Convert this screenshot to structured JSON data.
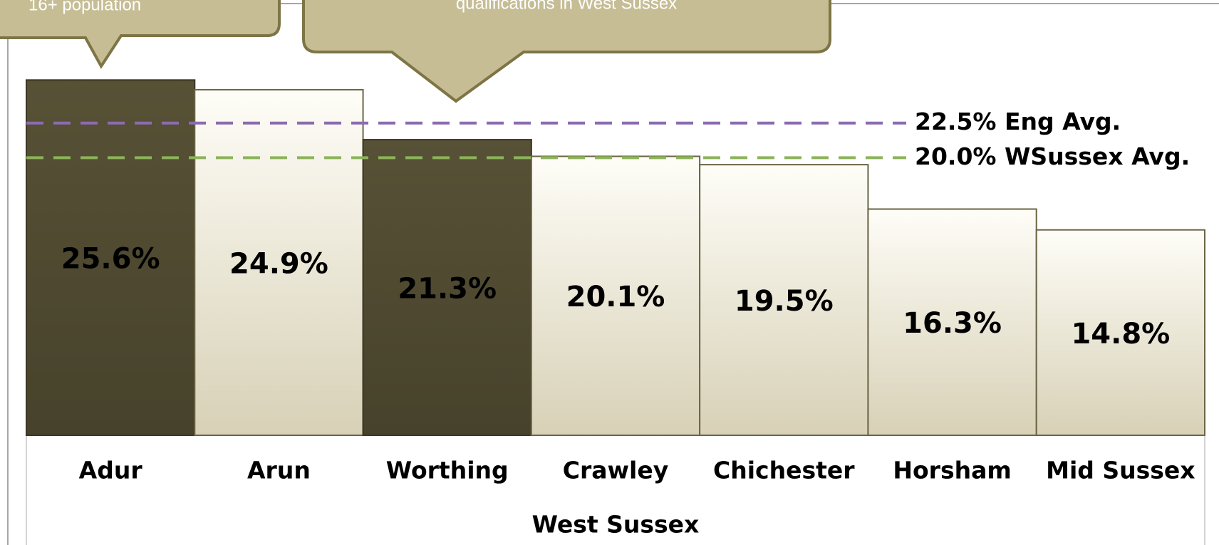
{
  "chart_data": {
    "type": "bar",
    "x_label": "West Sussex",
    "categories": [
      "Adur",
      "Arun",
      "Worthing",
      "Crawley",
      "Chichester",
      "Horsham",
      "Mid Sussex"
    ],
    "values": [
      25.6,
      24.9,
      21.3,
      20.1,
      19.5,
      16.3,
      14.8
    ],
    "value_labels": [
      "25.6%",
      "24.9%",
      "21.3%",
      "20.1%",
      "19.5%",
      "16.3%",
      "14.8%"
    ],
    "colors": [
      "#4f4a31",
      "#f2efe2",
      "#4f4a31",
      "#f2efe2",
      "#f2efe2",
      "#f2efe2",
      "#f2efe2"
    ],
    "ylim": [
      0,
      31
    ],
    "reference_lines": [
      {
        "value": 22.5,
        "label": "22.5% Eng Avg.",
        "color": "#8c6bb1"
      },
      {
        "value": 20.0,
        "label": "20.0% WSussex Avg.",
        "color": "#8db35a"
      }
    ],
    "annotations": [
      "16+ population",
      "qualifications in West Sussex"
    ]
  }
}
